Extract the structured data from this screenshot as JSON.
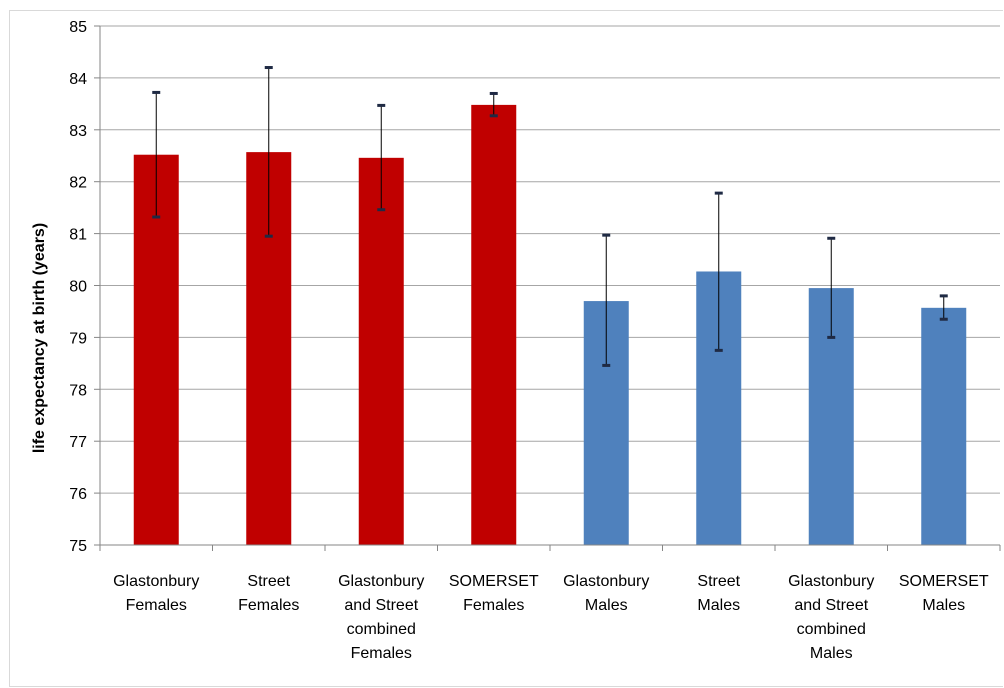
{
  "chart_data": {
    "type": "bar",
    "title": "",
    "ylabel": "life expectancy at birth (years)",
    "xlabel": "",
    "ylim": [
      75,
      85
    ],
    "yticks": [
      "75",
      "76",
      "77",
      "78",
      "79",
      "80",
      "81",
      "82",
      "83",
      "84",
      "85"
    ],
    "grid": true,
    "categories": [
      [
        "Glastonbury",
        "Females"
      ],
      [
        "Street",
        "Females"
      ],
      [
        "Glastonbury",
        "and Street",
        "combined",
        "Females"
      ],
      [
        "SOMERSET",
        "Females"
      ],
      [
        "Glastonbury",
        "Males"
      ],
      [
        "Street",
        "Males"
      ],
      [
        "Glastonbury",
        "and Street",
        "combined",
        "Males"
      ],
      [
        "SOMERSET",
        "Males"
      ]
    ],
    "values": [
      82.52,
      82.57,
      82.46,
      83.48,
      79.7,
      80.27,
      79.95,
      79.57
    ],
    "error_low": [
      81.32,
      80.95,
      81.46,
      83.27,
      78.46,
      78.75,
      79.0,
      79.35
    ],
    "error_high": [
      83.72,
      84.2,
      83.47,
      83.7,
      80.97,
      81.78,
      80.91,
      79.8
    ],
    "colors": [
      "#c00000",
      "#c00000",
      "#c00000",
      "#c00000",
      "#4f81bd",
      "#4f81bd",
      "#4f81bd",
      "#4f81bd"
    ]
  }
}
